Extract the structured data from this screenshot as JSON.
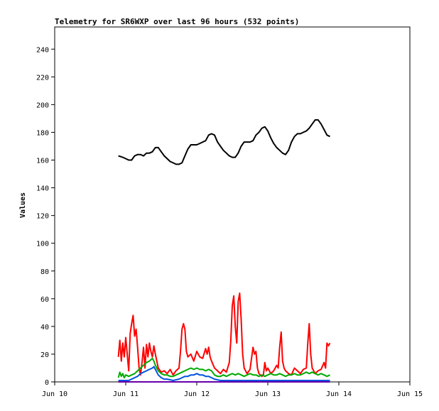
{
  "chart_data": {
    "type": "line",
    "title": "Telemetry for SR6WXP over last 96 hours (532 points)",
    "ylabel": "Values",
    "xlabel": "",
    "ylim": [
      0,
      256
    ],
    "xlim": [
      "Jun 10 00:00",
      "Jun 15 00:00"
    ],
    "x_tick_labels": [
      "Jun 10",
      "Jun 11",
      "Jun 12",
      "Jun 13",
      "Jun 14",
      "Jun 15"
    ],
    "y_tick_labels": [
      "0",
      "20",
      "40",
      "60",
      "80",
      "100",
      "120",
      "140",
      "160",
      "180",
      "200",
      "220",
      "240"
    ],
    "grid": false,
    "legend": "none",
    "time_unit": "hours since Jun 10 00:00",
    "series": [
      {
        "color": "#000000",
        "points": [
          [
            21.5,
            163
          ],
          [
            23,
            162
          ],
          [
            24,
            161
          ],
          [
            25,
            160
          ],
          [
            26,
            160
          ],
          [
            27,
            163
          ],
          [
            28,
            164
          ],
          [
            29,
            164
          ],
          [
            30,
            163
          ],
          [
            31,
            165
          ],
          [
            32,
            165
          ],
          [
            33,
            166
          ],
          [
            34,
            169
          ],
          [
            35,
            169
          ],
          [
            36,
            166
          ],
          [
            37,
            163
          ],
          [
            38,
            161
          ],
          [
            39,
            159
          ],
          [
            40,
            158
          ],
          [
            41,
            157
          ],
          [
            42,
            157
          ],
          [
            43,
            158
          ],
          [
            44,
            163
          ],
          [
            45,
            168
          ],
          [
            46,
            171
          ],
          [
            47,
            171
          ],
          [
            48,
            171
          ],
          [
            49,
            172
          ],
          [
            50,
            173
          ],
          [
            51,
            174
          ],
          [
            52,
            178
          ],
          [
            53,
            179
          ],
          [
            54,
            178
          ],
          [
            55,
            173
          ],
          [
            56,
            170
          ],
          [
            57,
            167
          ],
          [
            58,
            165
          ],
          [
            59,
            163
          ],
          [
            60,
            162
          ],
          [
            61,
            162
          ],
          [
            62,
            165
          ],
          [
            63,
            170
          ],
          [
            64,
            173
          ],
          [
            65,
            173
          ],
          [
            66,
            173
          ],
          [
            67,
            174
          ],
          [
            68,
            178
          ],
          [
            69,
            180
          ],
          [
            70,
            183
          ],
          [
            71,
            184
          ],
          [
            72,
            181
          ],
          [
            73,
            176
          ],
          [
            74,
            172
          ],
          [
            75,
            169
          ],
          [
            76,
            167
          ],
          [
            77,
            165
          ],
          [
            78,
            164
          ],
          [
            79,
            167
          ],
          [
            80,
            173
          ],
          [
            81,
            177
          ],
          [
            82,
            179
          ],
          [
            83,
            179
          ],
          [
            84,
            180
          ],
          [
            85,
            181
          ],
          [
            86,
            183
          ],
          [
            87,
            186
          ],
          [
            88,
            189
          ],
          [
            89,
            189
          ],
          [
            90,
            186
          ],
          [
            91,
            182
          ],
          [
            92,
            178
          ],
          [
            93,
            177
          ]
        ]
      },
      {
        "color": "#ff0000",
        "points": [
          [
            21.5,
            18
          ],
          [
            22,
            30
          ],
          [
            22.5,
            15
          ],
          [
            23,
            28
          ],
          [
            23.5,
            18
          ],
          [
            24,
            32
          ],
          [
            25,
            8
          ],
          [
            25.5,
            35
          ],
          [
            26,
            42
          ],
          [
            26.5,
            48
          ],
          [
            27,
            33
          ],
          [
            27.5,
            38
          ],
          [
            28,
            25
          ],
          [
            28.5,
            10
          ],
          [
            29,
            5
          ],
          [
            29.5,
            14
          ],
          [
            30,
            25
          ],
          [
            30.5,
            10
          ],
          [
            31,
            27
          ],
          [
            31.5,
            18
          ],
          [
            32,
            28
          ],
          [
            32.5,
            22
          ],
          [
            33,
            18
          ],
          [
            33.5,
            26
          ],
          [
            34,
            20
          ],
          [
            34.5,
            15
          ],
          [
            35,
            10
          ],
          [
            36,
            7
          ],
          [
            37,
            8
          ],
          [
            38,
            6
          ],
          [
            39,
            9
          ],
          [
            40,
            5
          ],
          [
            41,
            8
          ],
          [
            42,
            10
          ],
          [
            42.5,
            22
          ],
          [
            43,
            38
          ],
          [
            43.5,
            42
          ],
          [
            44,
            38
          ],
          [
            44.5,
            22
          ],
          [
            45,
            18
          ],
          [
            46,
            20
          ],
          [
            47,
            15
          ],
          [
            48,
            22
          ],
          [
            49,
            18
          ],
          [
            50,
            17
          ],
          [
            51,
            24
          ],
          [
            51.5,
            20
          ],
          [
            52,
            25
          ],
          [
            52.5,
            18
          ],
          [
            53,
            15
          ],
          [
            54,
            10
          ],
          [
            55,
            8
          ],
          [
            56,
            6
          ],
          [
            57,
            9
          ],
          [
            58,
            7
          ],
          [
            59,
            14
          ],
          [
            59.5,
            30
          ],
          [
            60,
            55
          ],
          [
            60.5,
            62
          ],
          [
            61,
            40
          ],
          [
            61.5,
            28
          ],
          [
            62,
            58
          ],
          [
            62.5,
            64
          ],
          [
            63,
            45
          ],
          [
            63.5,
            20
          ],
          [
            64,
            10
          ],
          [
            65,
            6
          ],
          [
            66,
            9
          ],
          [
            67,
            25
          ],
          [
            67.5,
            20
          ],
          [
            68,
            22
          ],
          [
            68.5,
            10
          ],
          [
            69,
            6
          ],
          [
            70,
            4
          ],
          [
            70.5,
            5
          ],
          [
            71,
            14
          ],
          [
            71.5,
            8
          ],
          [
            72,
            10
          ],
          [
            73,
            6
          ],
          [
            74,
            8
          ],
          [
            75,
            12
          ],
          [
            75.5,
            10
          ],
          [
            76,
            25
          ],
          [
            76.5,
            36
          ],
          [
            77,
            15
          ],
          [
            77.5,
            10
          ],
          [
            78,
            8
          ],
          [
            79,
            6
          ],
          [
            80,
            5
          ],
          [
            81,
            10
          ],
          [
            82,
            8
          ],
          [
            83,
            6
          ],
          [
            84,
            9
          ],
          [
            85,
            10
          ],
          [
            85.5,
            28
          ],
          [
            86,
            42
          ],
          [
            86.5,
            20
          ],
          [
            87,
            10
          ],
          [
            88,
            6
          ],
          [
            89,
            8
          ],
          [
            90,
            9
          ],
          [
            91,
            14
          ],
          [
            91.5,
            10
          ],
          [
            92,
            28
          ],
          [
            92.5,
            26
          ],
          [
            93,
            28
          ]
        ]
      },
      {
        "color": "#00aa00",
        "points": [
          [
            21.5,
            3
          ],
          [
            22,
            7
          ],
          [
            22.5,
            4
          ],
          [
            23,
            6
          ],
          [
            23.5,
            3
          ],
          [
            24,
            5
          ],
          [
            25,
            4
          ],
          [
            26,
            5
          ],
          [
            27,
            6
          ],
          [
            28,
            8
          ],
          [
            29,
            10
          ],
          [
            30,
            12
          ],
          [
            31,
            14
          ],
          [
            32,
            15
          ],
          [
            33,
            17
          ],
          [
            33.5,
            15
          ],
          [
            34,
            12
          ],
          [
            35,
            8
          ],
          [
            36,
            6
          ],
          [
            37,
            5
          ],
          [
            38,
            5
          ],
          [
            39,
            4
          ],
          [
            40,
            4
          ],
          [
            41,
            5
          ],
          [
            42,
            6
          ],
          [
            43,
            7
          ],
          [
            44,
            8
          ],
          [
            45,
            9
          ],
          [
            46,
            10
          ],
          [
            47,
            9
          ],
          [
            48,
            10
          ],
          [
            49,
            9
          ],
          [
            50,
            9
          ],
          [
            51,
            8
          ],
          [
            52,
            9
          ],
          [
            53,
            8
          ],
          [
            54,
            5
          ],
          [
            55,
            4
          ],
          [
            56,
            4
          ],
          [
            57,
            5
          ],
          [
            58,
            4
          ],
          [
            59,
            5
          ],
          [
            60,
            6
          ],
          [
            61,
            5
          ],
          [
            62,
            6
          ],
          [
            63,
            5
          ],
          [
            64,
            4
          ],
          [
            65,
            5
          ],
          [
            66,
            6
          ],
          [
            67,
            5
          ],
          [
            68,
            5
          ],
          [
            69,
            4
          ],
          [
            70,
            5
          ],
          [
            71,
            4
          ],
          [
            72,
            5
          ],
          [
            73,
            6
          ],
          [
            74,
            5
          ],
          [
            75,
            5
          ],
          [
            76,
            6
          ],
          [
            77,
            5
          ],
          [
            78,
            4
          ],
          [
            79,
            5
          ],
          [
            80,
            5
          ],
          [
            81,
            6
          ],
          [
            82,
            5
          ],
          [
            83,
            5
          ],
          [
            84,
            6
          ],
          [
            85,
            7
          ],
          [
            86,
            6
          ],
          [
            87,
            7
          ],
          [
            88,
            6
          ],
          [
            89,
            5
          ],
          [
            90,
            6
          ],
          [
            91,
            5
          ],
          [
            92,
            4
          ],
          [
            93,
            5
          ]
        ]
      },
      {
        "color": "#0055dd",
        "points": [
          [
            21.5,
            1
          ],
          [
            23,
            1
          ],
          [
            25,
            1
          ],
          [
            26,
            2
          ],
          [
            27,
            3
          ],
          [
            28,
            4
          ],
          [
            29,
            6
          ],
          [
            30,
            7
          ],
          [
            31,
            8
          ],
          [
            32,
            9
          ],
          [
            33,
            10
          ],
          [
            33.5,
            11
          ],
          [
            34,
            9
          ],
          [
            35,
            5
          ],
          [
            36,
            3
          ],
          [
            37,
            2
          ],
          [
            38,
            2
          ],
          [
            40,
            1
          ],
          [
            42,
            2
          ],
          [
            43,
            3
          ],
          [
            44,
            4
          ],
          [
            45,
            4
          ],
          [
            46,
            5
          ],
          [
            47,
            5
          ],
          [
            48,
            6
          ],
          [
            49,
            5
          ],
          [
            50,
            5
          ],
          [
            51,
            4
          ],
          [
            52,
            4
          ],
          [
            53,
            3
          ],
          [
            54,
            2
          ],
          [
            56,
            1
          ],
          [
            58,
            1
          ],
          [
            60,
            1
          ],
          [
            62,
            1
          ],
          [
            64,
            1
          ],
          [
            66,
            1
          ],
          [
            68,
            1
          ],
          [
            70,
            1
          ],
          [
            72,
            1
          ],
          [
            74,
            1
          ],
          [
            76,
            1
          ],
          [
            78,
            1
          ],
          [
            80,
            1
          ],
          [
            82,
            1
          ],
          [
            84,
            1
          ],
          [
            86,
            1
          ],
          [
            88,
            1
          ],
          [
            90,
            1
          ],
          [
            92,
            1
          ],
          [
            93,
            1
          ]
        ]
      },
      {
        "color": "#6600aa",
        "points": [
          [
            21.5,
            0
          ],
          [
            93,
            0
          ]
        ]
      }
    ]
  }
}
